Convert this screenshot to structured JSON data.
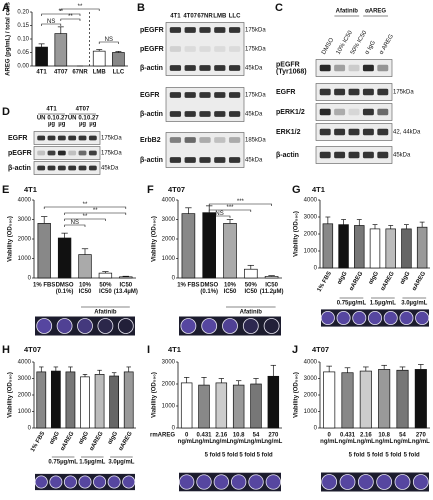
{
  "chart_data": [
    {
      "type": "bar",
      "panel": "A",
      "y_label": "AREG (pg/mL) / total cells",
      "categories": [
        "4T1",
        "4T07",
        "67NR",
        "LMB",
        "LLC"
      ],
      "values": [
        0.07,
        0.12,
        0,
        0.055,
        0.05
      ],
      "errors": [
        0.012,
        0.025,
        0,
        0.006,
        0.004
      ],
      "colors": [
        "#111111",
        "#999999",
        "#ffffff",
        "#ffffff",
        "#888888"
      ],
      "ylim": [
        0,
        0.2
      ],
      "yticks": [
        {
          "value": 0,
          "label": "0.00"
        },
        {
          "value": 0.05,
          "label": "0.05"
        },
        {
          "value": 0.1,
          "label": "0.10"
        },
        {
          "value": 0.15,
          "label": "0.15"
        },
        {
          "value": 0.2,
          "label": "0.20"
        }
      ],
      "annotations": [
        "NS",
        "**",
        "**",
        "**",
        "NS"
      ]
    },
    {
      "type": "bar",
      "panel": "E",
      "title": "4T1",
      "y_label": "Viability (OD₅₉₀)",
      "categories": [
        "1% FBS",
        [
          "DMSO",
          "(0.1%)"
        ],
        [
          "10%",
          "IC50"
        ],
        [
          "50%",
          "IC50"
        ],
        [
          "IC50",
          "(13.4µM)"
        ]
      ],
      "values": [
        2800,
        2050,
        1200,
        250,
        60
      ],
      "errors": [
        350,
        250,
        300,
        80,
        30
      ],
      "colors": [
        "#888888",
        "#111111",
        "#aaaaaa",
        "#ffffff",
        "#ffffff"
      ],
      "ylim": [
        0,
        4000
      ],
      "yticks": [
        0,
        1000,
        2000,
        3000,
        4000
      ],
      "annotations": [
        "NS",
        "**",
        "**",
        "**"
      ],
      "group_labels": [
        "Afatinib"
      ]
    },
    {
      "type": "bar",
      "panel": "F",
      "title": "4T07",
      "y_label": "Viability (OD₅₉₀)",
      "categories": [
        "1% FBS",
        [
          "DMSO",
          "(0.1%)"
        ],
        [
          "10%",
          "IC50"
        ],
        [
          "50%",
          "IC50"
        ],
        [
          "IC50",
          "(11.2µM)"
        ]
      ],
      "values": [
        3300,
        3350,
        2800,
        450,
        80
      ],
      "errors": [
        300,
        350,
        200,
        200,
        40
      ],
      "colors": [
        "#888888",
        "#111111",
        "#aaaaaa",
        "#ffffff",
        "#ffffff"
      ],
      "ylim": [
        0,
        4000
      ],
      "yticks": [
        0,
        1000,
        2000,
        3000,
        4000
      ],
      "annotations": [
        "NS",
        "***",
        "***"
      ],
      "group_labels": [
        "Afatinib"
      ]
    },
    {
      "type": "bar",
      "panel": "G",
      "title": "4T1",
      "y_label": "Viability (OD₅₉₀)",
      "categories": [
        "1% FBS",
        "αIgG",
        "αAREG",
        "αIgG",
        "αAREG",
        "αIgG",
        "αAREG"
      ],
      "values": [
        2600,
        2550,
        2500,
        2300,
        2300,
        2300,
        2400
      ],
      "errors": [
        400,
        300,
        350,
        250,
        200,
        250,
        300
      ],
      "colors": [
        "#888888",
        "#111111",
        "#777777",
        "#ffffff",
        "#bbbbbb",
        "#666666",
        "#999999"
      ],
      "ylim": [
        0,
        4000
      ],
      "yticks": [
        0,
        1000,
        2000,
        3000,
        4000
      ],
      "group_labels": [
        "0.75µg/mL",
        "1.5µg/mL",
        "3.0µg/mL"
      ]
    },
    {
      "type": "bar",
      "panel": "H",
      "title": "4T07",
      "y_label": "Viability (OD₅₉₀)",
      "categories": [
        "1% FBS",
        "αIgG",
        "αAREG",
        "αIgG",
        "αAREG",
        "αIgG",
        "αAREG"
      ],
      "values": [
        3400,
        3450,
        3400,
        3100,
        3250,
        3150,
        3400
      ],
      "errors": [
        300,
        250,
        300,
        150,
        250,
        200,
        300
      ],
      "colors": [
        "#888888",
        "#111111",
        "#777777",
        "#ffffff",
        "#bbbbbb",
        "#666666",
        "#999999"
      ],
      "ylim": [
        0,
        4000
      ],
      "yticks": [
        0,
        1000,
        2000,
        3000,
        4000
      ],
      "group_labels": [
        "0.75µg/mL",
        "1.5µg/mL",
        "3.0µg/mL"
      ]
    },
    {
      "type": "bar",
      "panel": "I",
      "title": "4T1",
      "y_label": "Viability (OD₅₉₀)",
      "x_label": "rmAREG",
      "categories": [
        [
          "0",
          "ng/mL"
        ],
        [
          "0.431",
          "ng/mL"
        ],
        [
          "2.16",
          "ng/mL"
        ],
        [
          "10.8",
          "ng/mL"
        ],
        [
          "54",
          "ng/mL"
        ],
        [
          "270",
          "ng/mL"
        ]
      ],
      "values": [
        2050,
        1950,
        2050,
        1950,
        2000,
        2350
      ],
      "errors": [
        250,
        350,
        200,
        200,
        250,
        500
      ],
      "colors": [
        "#ffffff",
        "#888888",
        "#cccccc",
        "#999999",
        "#777777",
        "#111111"
      ],
      "ylim": [
        0,
        3000
      ],
      "yticks": [
        0,
        1000,
        2000,
        3000
      ],
      "group_labels": [
        "5 fold",
        "5 fold",
        "5 fold",
        "5 fold"
      ]
    },
    {
      "type": "bar",
      "panel": "J",
      "title": "4T07",
      "y_label": "Viability (OD₅₉₀)",
      "categories": [
        [
          "0",
          "ng/mL"
        ],
        [
          "0.431",
          "ng/mL"
        ],
        [
          "2.16",
          "ng/mL"
        ],
        [
          "10.8",
          "ng/mL"
        ],
        [
          "54",
          "ng/mL"
        ],
        [
          "270",
          "ng/mL"
        ]
      ],
      "values": [
        3400,
        3350,
        3450,
        3550,
        3500,
        3550
      ],
      "errors": [
        350,
        300,
        250,
        250,
        200,
        300
      ],
      "colors": [
        "#ffffff",
        "#888888",
        "#cccccc",
        "#999999",
        "#777777",
        "#111111"
      ],
      "ylim": [
        0,
        4000
      ],
      "yticks": [
        0,
        1000,
        2000,
        3000,
        4000
      ],
      "group_labels": [
        "5 fold",
        "5 fold",
        "5 fold",
        "5 fold"
      ]
    }
  ],
  "blots": [
    {
      "panel": "B",
      "lanes": [
        "4T1",
        "4T07",
        "67NR",
        "LMB",
        "LLC"
      ],
      "rows": [
        {
          "name": "pEGFR",
          "size": "175kDa"
        },
        {
          "name": "pEGFR",
          "size": "175kDa"
        },
        {
          "name": "β-actin",
          "size": "45kDa"
        },
        {
          "name": "EGFR",
          "size": "175kDa"
        },
        {
          "name": "β-actin",
          "size": "45kDa"
        },
        {
          "name": "ErbB2",
          "size": "185kDa"
        },
        {
          "name": "β-actin",
          "size": "45kDa"
        }
      ]
    },
    {
      "panel": "C",
      "groups": [
        "Afatinib",
        "αAREG"
      ],
      "lanes": [
        "DMSO",
        "10% IC50",
        "50% IC50",
        "α IgG",
        "α AREG"
      ],
      "rows": [
        {
          "name": [
            "pEGFR",
            "(Tyr1068)"
          ]
        },
        {
          "name": "EGFR",
          "size": "175kDa"
        },
        {
          "name": "pERK1/2"
        },
        {
          "name": "ERK1/2",
          "size": "42, 44kDa"
        },
        {
          "name": "β-actin",
          "size": "45kDa"
        }
      ]
    },
    {
      "panel": "D",
      "groups": [
        "4T1",
        "4T07"
      ],
      "lanes": [
        "UN",
        [
          "0.1",
          "µg"
        ],
        [
          "0.27",
          "µg"
        ],
        "UN",
        [
          "0.1",
          "µg"
        ],
        [
          "0.27",
          "µg"
        ]
      ],
      "rows": [
        {
          "name": "EGFR",
          "size": "175kDa"
        },
        {
          "name": "pEGFR",
          "size": "175kDa"
        },
        {
          "name": "β-actin",
          "size": "45kDa"
        }
      ]
    }
  ]
}
